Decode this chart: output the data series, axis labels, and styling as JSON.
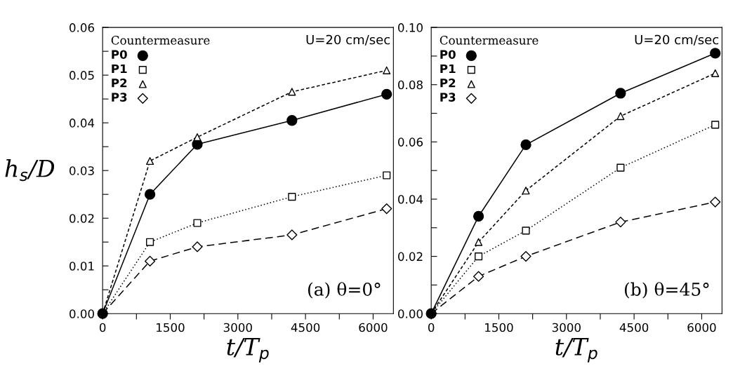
{
  "chart_data": [
    {
      "type": "line",
      "xlabel": "t/T$_{p}$",
      "ylabel": "h$_{s}$/D",
      "legend_title": "Countermeasure",
      "legend": "top left",
      "grid": false,
      "x": [
        0,
        1050,
        2100,
        4200,
        6300
      ],
      "xlim": [
        0,
        6450
      ],
      "xticks": [
        0,
        {
          "value": 750,
          "label": null
        },
        1500,
        {
          "value": 2250,
          "label": null
        },
        3000,
        {
          "value": 3750,
          "label": null
        },
        4500,
        {
          "value": 5250,
          "label": null
        },
        6000
      ],
      "ylim": [
        0,
        0.06
      ],
      "yticks": [
        {
          "value": 0,
          "label": "0.00"
        },
        {
          "value": 0.005,
          "label": null
        },
        0.01,
        {
          "value": 0.015,
          "label": null
        },
        0.02,
        {
          "value": 0.025,
          "label": null
        },
        0.03,
        {
          "value": 0.035,
          "label": null
        },
        0.04,
        {
          "value": 0.045,
          "label": null
        },
        0.05,
        {
          "value": 0.055,
          "label": null
        },
        0.06
      ],
      "annotations": [
        "U=20 cm/sec",
        "(a) θ=0°"
      ],
      "series": [
        {
          "name": "P0",
          "color": "#000000",
          "marker": "circle",
          "line_style": "solid",
          "values": [
            0,
            0.025,
            0.0355,
            0.0405,
            0.046
          ]
        },
        {
          "name": "P1",
          "color": "#000000",
          "marker": "square",
          "line_style": "dotted",
          "values": [
            0,
            0.015,
            0.019,
            0.0245,
            0.029
          ]
        },
        {
          "name": "P2",
          "color": "#000000",
          "marker": "triangle",
          "line_style": "dashed",
          "values": [
            0,
            0.032,
            0.037,
            0.0465,
            0.051
          ]
        },
        {
          "name": "P3",
          "color": "#000000",
          "marker": "diamond",
          "line_style": "longdash",
          "values": [
            0,
            0.011,
            0.014,
            0.0165,
            0.022
          ]
        }
      ]
    },
    {
      "type": "line",
      "xlabel": "t/T$_{p}$",
      "legend_title": "Countermeasure",
      "legend": "top left",
      "grid": false,
      "x": [
        0,
        1050,
        2100,
        4200,
        6300
      ],
      "xlim": [
        0,
        6450
      ],
      "xticks": [
        0,
        {
          "value": 750,
          "label": null
        },
        1500,
        {
          "value": 2250,
          "label": null
        },
        3000,
        {
          "value": 3750,
          "label": null
        },
        4500,
        {
          "value": 5250,
          "label": null
        },
        6000
      ],
      "ylim": [
        0,
        0.1
      ],
      "yticks": [
        {
          "value": 0,
          "label": "0.00"
        },
        {
          "value": 0.01,
          "label": null
        },
        0.02,
        {
          "value": 0.03,
          "label": null
        },
        0.04,
        {
          "value": 0.05,
          "label": null
        },
        0.06,
        {
          "value": 0.07,
          "label": null
        },
        0.08,
        {
          "value": 0.09,
          "label": null
        },
        {
          "value": 0.1,
          "label": "0.10"
        }
      ],
      "annotations": [
        "U=20 cm/sec",
        "(b) θ=45°"
      ],
      "series": [
        {
          "name": "P0",
          "color": "#000000",
          "marker": "circle",
          "line_style": "solid",
          "values": [
            0,
            0.034,
            0.059,
            0.077,
            0.091
          ]
        },
        {
          "name": "P1",
          "color": "#000000",
          "marker": "square",
          "line_style": "dotted",
          "values": [
            0,
            0.02,
            0.029,
            0.051,
            0.066
          ]
        },
        {
          "name": "P2",
          "color": "#000000",
          "marker": "triangle",
          "line_style": "dashed",
          "values": [
            0,
            0.025,
            0.043,
            0.069,
            0.084
          ]
        },
        {
          "name": "P3",
          "color": "#000000",
          "marker": "diamond",
          "line_style": "longdash",
          "values": [
            0,
            0.013,
            0.02,
            0.032,
            0.039
          ]
        }
      ]
    }
  ]
}
